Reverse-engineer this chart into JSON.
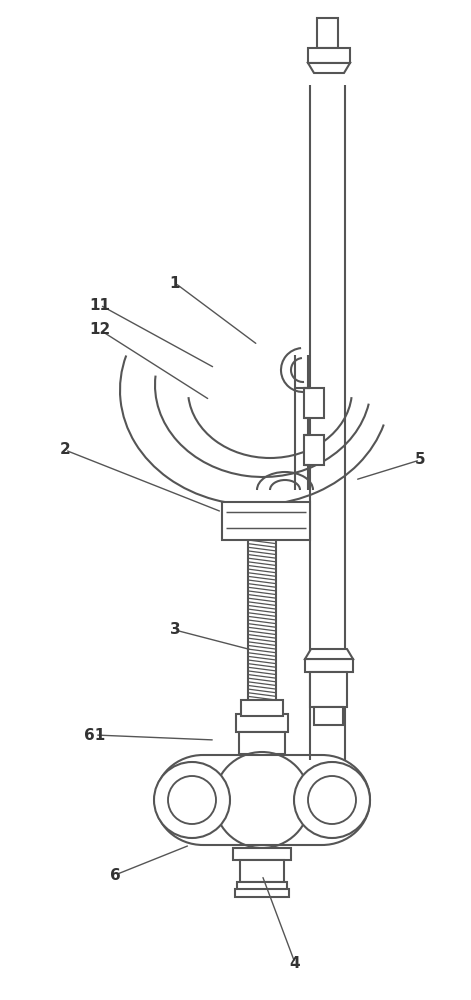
{
  "bg_color": "#ffffff",
  "line_color": "#555555",
  "lw": 1.5,
  "figsize": [
    4.71,
    10.0
  ],
  "dpi": 100
}
